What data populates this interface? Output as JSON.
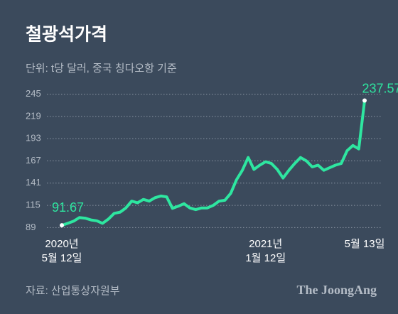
{
  "chart_data": {
    "type": "line",
    "title": "철광석가격",
    "subtitle": "단위: t당 달러, 중국 칭다오항 기준",
    "source": "자료: 산업통상자원부",
    "brand": "The JoongAng",
    "categories": [
      "2020년\n5월 12일",
      null,
      null,
      null,
      null,
      null,
      null,
      null,
      null,
      null,
      null,
      null,
      null,
      null,
      null,
      null,
      null,
      null,
      null,
      null,
      null,
      null,
      null,
      null,
      null,
      null,
      null,
      null,
      null,
      null,
      null,
      null,
      null,
      null,
      null,
      "2021년\n1월 12일",
      null,
      null,
      null,
      null,
      null,
      null,
      null,
      null,
      null,
      null,
      null,
      null,
      null,
      null,
      null,
      null,
      "5월 13일"
    ],
    "series": [
      {
        "name": "철광석가격",
        "color": "#2ee6a0",
        "values": [
          91.67,
          94,
          96.5,
          100.7,
          100,
          98,
          97,
          94,
          99,
          105.7,
          107,
          112,
          120,
          118,
          122,
          120,
          124,
          126,
          125,
          111.5,
          114,
          117,
          112,
          110,
          112,
          112,
          115,
          120,
          121,
          129,
          145,
          156,
          171,
          157,
          162,
          166,
          164,
          157,
          147,
          156,
          164,
          171,
          167,
          160,
          162,
          156,
          159,
          162,
          164,
          179,
          185,
          181,
          237.57
        ]
      }
    ],
    "ylim": [
      86,
      248
    ],
    "yticks": [
      89,
      115,
      141,
      167,
      193,
      219,
      245
    ],
    "grid": true
  }
}
